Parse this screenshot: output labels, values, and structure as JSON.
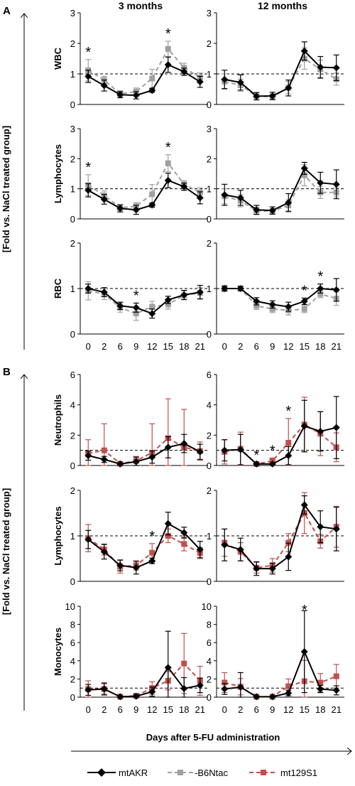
{
  "colors": {
    "mtAKR": "#000000",
    "B6Ntac": "#a0a0a0",
    "mt129S1": "#c0504d",
    "axis": "#000000",
    "grid": "#bfbfbf"
  },
  "panel_labels": {
    "A": "A",
    "B": "B"
  },
  "column_titles": [
    "3 months",
    "12 months"
  ],
  "y_axis_title": "[Fold vs. NaCl treated group]",
  "x_axis_title": "Days after 5-FU administration",
  "legend": [
    "mtAKR",
    "-B6Ntac",
    "mt129S1"
  ],
  "chart_data": [
    {
      "type": "line",
      "panel": "A",
      "row_label": "WBC",
      "column": "3 months",
      "x": [
        0,
        2,
        6,
        9,
        12,
        15,
        18,
        21
      ],
      "ylim": [
        0,
        3
      ],
      "yticks": [
        0,
        1,
        2,
        3
      ],
      "reference_line": 1,
      "asterisks_at_x": [
        0,
        15
      ],
      "series": [
        {
          "name": "mtAKR",
          "values": [
            0.92,
            0.62,
            0.32,
            0.3,
            0.46,
            1.3,
            1.07,
            0.74
          ],
          "errors": [
            0.2,
            0.18,
            0.1,
            0.12,
            0.06,
            0.25,
            0.12,
            0.18
          ]
        },
        {
          "name": "-B6Ntac",
          "values": [
            1.12,
            0.8,
            0.35,
            0.42,
            0.85,
            1.82,
            1.2,
            0.88
          ],
          "errors": [
            0.35,
            0.12,
            0.1,
            0.12,
            0.3,
            0.25,
            0.15,
            0.15
          ]
        }
      ]
    },
    {
      "type": "line",
      "panel": "A",
      "row_label": "WBC",
      "column": "12 months",
      "x": [
        0,
        2,
        6,
        9,
        12,
        15,
        18,
        21
      ],
      "ylim": [
        0,
        3
      ],
      "yticks": [
        0,
        1,
        2,
        3
      ],
      "reference_line": 1,
      "asterisks_at_x": [],
      "series": [
        {
          "name": "mtAKR",
          "values": [
            0.82,
            0.72,
            0.27,
            0.28,
            0.54,
            1.75,
            1.22,
            1.2
          ],
          "errors": [
            0.3,
            0.25,
            0.12,
            0.12,
            0.26,
            0.3,
            0.35,
            0.42
          ]
        },
        {
          "name": "-B6Ntac",
          "values": [
            0.75,
            0.63,
            0.27,
            0.25,
            0.55,
            1.5,
            1.15,
            0.83
          ],
          "errors": [
            0.25,
            0.2,
            0.12,
            0.1,
            0.2,
            0.35,
            0.3,
            0.2
          ]
        }
      ]
    },
    {
      "type": "line",
      "panel": "A",
      "row_label": "Lymphocytes",
      "column": "3 months",
      "x": [
        0,
        2,
        6,
        9,
        12,
        15,
        18,
        21
      ],
      "ylim": [
        0,
        3
      ],
      "yticks": [
        0,
        1,
        2,
        3
      ],
      "reference_line": 1,
      "asterisks_at_x": [
        0,
        15
      ],
      "series": [
        {
          "name": "mtAKR",
          "values": [
            0.95,
            0.65,
            0.35,
            0.3,
            0.46,
            1.28,
            1.07,
            0.7
          ],
          "errors": [
            0.22,
            0.16,
            0.12,
            0.15,
            0.07,
            0.24,
            0.12,
            0.2
          ]
        },
        {
          "name": "-B6Ntac",
          "values": [
            1.12,
            0.78,
            0.37,
            0.42,
            0.82,
            1.85,
            1.15,
            0.88
          ],
          "errors": [
            0.35,
            0.15,
            0.1,
            0.12,
            0.32,
            0.28,
            0.12,
            0.15
          ]
        }
      ]
    },
    {
      "type": "line",
      "panel": "A",
      "row_label": "Lymphocytes",
      "column": "12 months",
      "x": [
        0,
        2,
        6,
        9,
        12,
        15,
        18,
        21
      ],
      "ylim": [
        0,
        3
      ],
      "yticks": [
        0,
        1,
        2,
        3
      ],
      "reference_line": 1,
      "asterisks_at_x": [],
      "series": [
        {
          "name": "mtAKR",
          "values": [
            0.8,
            0.7,
            0.3,
            0.28,
            0.54,
            1.68,
            1.2,
            1.15
          ],
          "errors": [
            0.35,
            0.25,
            0.15,
            0.12,
            0.3,
            0.2,
            0.35,
            0.48
          ]
        },
        {
          "name": "-B6Ntac",
          "values": [
            0.75,
            0.6,
            0.27,
            0.25,
            0.45,
            1.45,
            0.88,
            0.88
          ],
          "errors": [
            0.25,
            0.2,
            0.12,
            0.1,
            0.18,
            0.35,
            0.2,
            0.15
          ]
        }
      ]
    },
    {
      "type": "line",
      "panel": "A",
      "row_label": "RBC",
      "column": "3 months",
      "x": [
        0,
        2,
        6,
        9,
        12,
        15,
        18,
        21
      ],
      "ylim": [
        0,
        2
      ],
      "yticks": [
        0,
        1,
        2
      ],
      "reference_line": 1,
      "asterisks_at_x": [
        9
      ],
      "series": [
        {
          "name": "mtAKR",
          "values": [
            1.0,
            0.92,
            0.62,
            0.58,
            0.45,
            0.75,
            0.86,
            0.92
          ],
          "errors": [
            0.1,
            0.1,
            0.08,
            0.1,
            0.1,
            0.08,
            0.1,
            0.15
          ]
        },
        {
          "name": "-B6Ntac",
          "values": [
            0.95,
            0.88,
            0.58,
            0.45,
            0.6,
            0.65,
            0.85,
            0.9
          ],
          "errors": [
            0.2,
            0.12,
            0.1,
            0.15,
            0.12,
            0.1,
            0.1,
            0.12
          ]
        }
      ]
    },
    {
      "type": "line",
      "panel": "A",
      "row_label": "RBC",
      "column": "12 months",
      "x": [
        0,
        2,
        6,
        9,
        12,
        15,
        18,
        21
      ],
      "ylim": [
        0,
        2
      ],
      "yticks": [
        0,
        1,
        2
      ],
      "reference_line": 1,
      "asterisks_at_x": [
        15,
        18
      ],
      "series": [
        {
          "name": "mtAKR",
          "values": [
            1.0,
            1.0,
            0.72,
            0.65,
            0.6,
            0.72,
            1.0,
            0.97
          ],
          "errors": [
            0.05,
            0.05,
            0.08,
            0.08,
            0.1,
            0.07,
            0.1,
            0.25
          ]
        },
        {
          "name": "-B6Ntac",
          "values": [
            1.0,
            1.0,
            0.62,
            0.55,
            0.52,
            0.55,
            0.88,
            0.78
          ],
          "errors": [
            0.07,
            0.05,
            0.08,
            0.08,
            0.1,
            0.08,
            0.08,
            0.15
          ]
        }
      ]
    },
    {
      "type": "line",
      "panel": "B",
      "row_label": "Neutrophils",
      "column": "3 months",
      "x": [
        0,
        2,
        6,
        9,
        12,
        15,
        18,
        21
      ],
      "ylim": [
        0,
        6
      ],
      "yticks": [
        0,
        2,
        4,
        6
      ],
      "reference_line": 1,
      "asterisks_at_x": [],
      "series": [
        {
          "name": "mtAKR",
          "values": [
            0.65,
            0.4,
            0.1,
            0.25,
            0.55,
            1.2,
            1.45,
            0.9
          ],
          "errors": [
            0.3,
            0.2,
            0.08,
            0.3,
            0.4,
            0.7,
            0.6,
            0.5
          ]
        },
        {
          "name": "mt129S1",
          "values": [
            0.8,
            1.0,
            0.12,
            0.3,
            0.85,
            1.8,
            1.2,
            0.95
          ],
          "errors": [
            0.9,
            1.75,
            0.1,
            0.3,
            1.9,
            2.6,
            2.5,
            0.6
          ]
        }
      ]
    },
    {
      "type": "line",
      "panel": "B",
      "row_label": "Neutrophils",
      "column": "12 months",
      "x": [
        0,
        2,
        6,
        9,
        12,
        15,
        18,
        21
      ],
      "ylim": [
        0,
        6
      ],
      "yticks": [
        0,
        2,
        4,
        6
      ],
      "reference_line": 1,
      "asterisks_at_x": [
        6,
        9,
        12
      ],
      "series": [
        {
          "name": "mtAKR",
          "values": [
            1.0,
            1.05,
            0.1,
            0.1,
            0.65,
            2.6,
            2.25,
            2.5
          ],
          "errors": [
            0.7,
            1.0,
            0.08,
            0.08,
            0.6,
            1.7,
            1.3,
            2.05
          ]
        },
        {
          "name": "mt129S1",
          "values": [
            0.9,
            1.1,
            0.1,
            0.3,
            1.5,
            2.7,
            2.1,
            1.2
          ],
          "errors": [
            0.8,
            1.1,
            0.08,
            0.2,
            1.6,
            1.8,
            1.45,
            0.95
          ]
        }
      ]
    },
    {
      "type": "line",
      "panel": "B",
      "row_label": "Lymphocytes",
      "column": "3 months",
      "x": [
        0,
        2,
        6,
        9,
        12,
        15,
        18,
        21
      ],
      "ylim": [
        0,
        2
      ],
      "yticks": [
        0,
        1,
        2
      ],
      "reference_line": 1,
      "asterisks_at_x": [
        12
      ],
      "series": [
        {
          "name": "mtAKR",
          "values": [
            0.92,
            0.65,
            0.35,
            0.3,
            0.45,
            1.27,
            1.07,
            0.7
          ],
          "errors": [
            0.2,
            0.16,
            0.12,
            0.14,
            0.06,
            0.25,
            0.12,
            0.18
          ]
        },
        {
          "name": "mt129S1",
          "values": [
            0.95,
            0.7,
            0.32,
            0.35,
            0.63,
            1.0,
            0.82,
            0.62
          ],
          "errors": [
            0.3,
            0.12,
            0.14,
            0.1,
            0.2,
            0.15,
            0.15,
            0.12
          ]
        }
      ]
    },
    {
      "type": "line",
      "panel": "B",
      "row_label": "Lymphocytes",
      "column": "12 months",
      "x": [
        0,
        2,
        6,
        9,
        12,
        15,
        18,
        21
      ],
      "ylim": [
        0,
        2
      ],
      "yticks": [
        0,
        1,
        2
      ],
      "reference_line": 1,
      "asterisks_at_x": [],
      "series": [
        {
          "name": "mtAKR",
          "values": [
            0.8,
            0.7,
            0.28,
            0.28,
            0.54,
            1.68,
            1.2,
            1.15
          ],
          "errors": [
            0.35,
            0.25,
            0.15,
            0.12,
            0.3,
            0.2,
            0.35,
            0.48
          ]
        },
        {
          "name": "mt129S1",
          "values": [
            0.85,
            0.65,
            0.3,
            0.35,
            0.85,
            1.5,
            0.88,
            1.2
          ],
          "errors": [
            0.3,
            0.2,
            0.12,
            0.15,
            0.2,
            0.45,
            0.15,
            0.45
          ]
        }
      ]
    },
    {
      "type": "line",
      "panel": "B",
      "row_label": "Monocytes",
      "column": "3 months",
      "x": [
        0,
        2,
        6,
        9,
        12,
        15,
        18,
        21
      ],
      "ylim": [
        0,
        10
      ],
      "yticks": [
        0,
        2,
        4,
        6,
        8,
        10
      ],
      "reference_line": 1,
      "asterisks_at_x": [],
      "series": [
        {
          "name": "mtAKR",
          "values": [
            0.8,
            0.9,
            0.05,
            0.1,
            0.6,
            3.25,
            0.95,
            1.3
          ],
          "errors": [
            0.6,
            0.6,
            0.05,
            0.2,
            0.5,
            4.0,
            1.2,
            0.8
          ]
        },
        {
          "name": "mt129S1",
          "values": [
            0.9,
            0.9,
            0.05,
            0.15,
            1.0,
            1.8,
            3.7,
            1.8
          ],
          "errors": [
            0.9,
            0.7,
            0.05,
            0.15,
            0.7,
            1.0,
            3.3,
            1.6
          ]
        }
      ]
    },
    {
      "type": "line",
      "panel": "B",
      "row_label": "Monocytes",
      "column": "12 months",
      "x": [
        0,
        2,
        6,
        9,
        12,
        15,
        18,
        21
      ],
      "ylim": [
        0,
        10
      ],
      "yticks": [
        0,
        2,
        4,
        6,
        8,
        10
      ],
      "reference_line": 1,
      "asterisks_at_x": [
        15
      ],
      "series": [
        {
          "name": "mtAKR",
          "values": [
            0.9,
            1.1,
            0.05,
            0.05,
            0.45,
            5.0,
            0.9,
            0.75
          ],
          "errors": [
            0.6,
            1.6,
            0.05,
            0.05,
            0.3,
            4.5,
            0.4,
            0.5
          ]
        },
        {
          "name": "mt129S1",
          "values": [
            1.6,
            1.15,
            0.05,
            0.05,
            1.2,
            1.75,
            1.6,
            2.3
          ],
          "errors": [
            1.1,
            0.9,
            0.05,
            0.05,
            0.8,
            2.3,
            1.0,
            1.3
          ]
        }
      ]
    }
  ]
}
